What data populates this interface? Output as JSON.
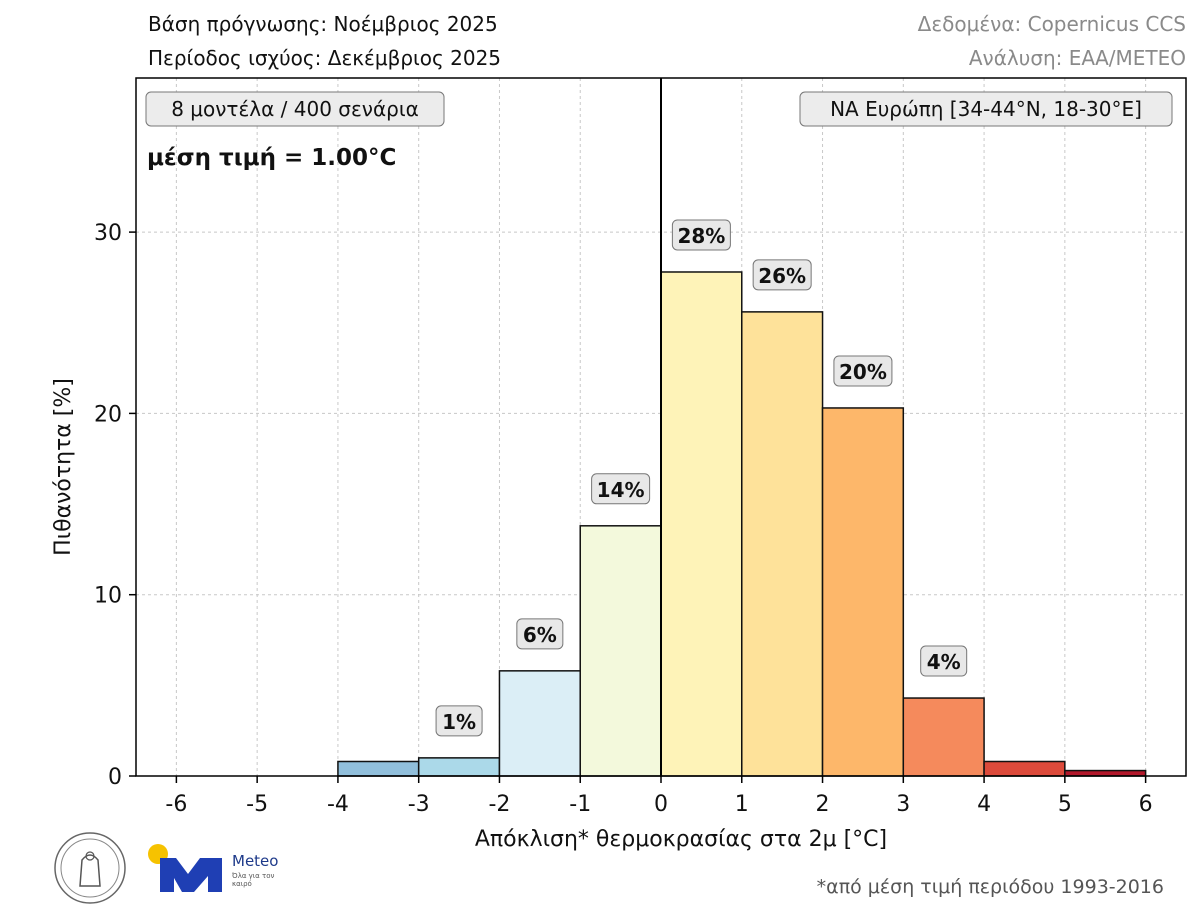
{
  "header": {
    "forecast_base": "Βάση πρόγνωσης: Νοέμβριος 2025",
    "valid_period": "Περίοδος ισχύος: Δεκέμβριος 2025",
    "data_source": "Δεδομένα: Copernicus CCS",
    "analysis": "Ανάλυση: ΕΑΑ/METEO"
  },
  "chart_data": {
    "type": "bar",
    "xlabel": "Απόκλιση* θερμοκρασίας στα 2μ [°C]",
    "ylabel": "Πιθανότητα [%]",
    "xlim": [
      -6.5,
      6.5
    ],
    "ylim": [
      0,
      38.5
    ],
    "x_ticks": [
      "-6",
      "-5",
      "-4",
      "-3",
      "-2",
      "-1",
      "0",
      "1",
      "2",
      "3",
      "4",
      "5",
      "6"
    ],
    "y_ticks": [
      "0",
      "10",
      "20",
      "30"
    ],
    "grid": true,
    "zero_line_x": 0,
    "bins": [
      {
        "from": -4,
        "to": -3,
        "value": 0.8,
        "label": "",
        "color": "#91bfdb"
      },
      {
        "from": -3,
        "to": -2,
        "value": 1.0,
        "label": "1%",
        "color": "#abd9e9"
      },
      {
        "from": -2,
        "to": -1,
        "value": 5.8,
        "label": "6%",
        "color": "#dbeef6"
      },
      {
        "from": -1,
        "to": 0,
        "value": 13.8,
        "label": "14%",
        "color": "#f3f9dc"
      },
      {
        "from": 0,
        "to": 1,
        "value": 27.8,
        "label": "28%",
        "color": "#fef3b8"
      },
      {
        "from": 1,
        "to": 2,
        "value": 25.6,
        "label": "26%",
        "color": "#fee29a"
      },
      {
        "from": 2,
        "to": 3,
        "value": 20.3,
        "label": "20%",
        "color": "#fdb76a"
      },
      {
        "from": 3,
        "to": 4,
        "value": 4.3,
        "label": "4%",
        "color": "#f58a5c"
      },
      {
        "from": 4,
        "to": 5,
        "value": 0.8,
        "label": "",
        "color": "#dc4a3b"
      },
      {
        "from": 5,
        "to": 6,
        "value": 0.3,
        "label": "",
        "color": "#b2182b"
      }
    ],
    "annotations": {
      "ensemble": "8 μοντέλα / 400 σενάρια",
      "mean": "μέση τιμή = 1.00°C",
      "region": "ΝΑ Ευρώπη [34-44°N, 18-30°E]"
    },
    "footnote": "*από μέση τιμή περιόδου 1993-2016"
  },
  "logo": {
    "name": "Meteo",
    "tagline": "Όλα για τον καιρό"
  }
}
